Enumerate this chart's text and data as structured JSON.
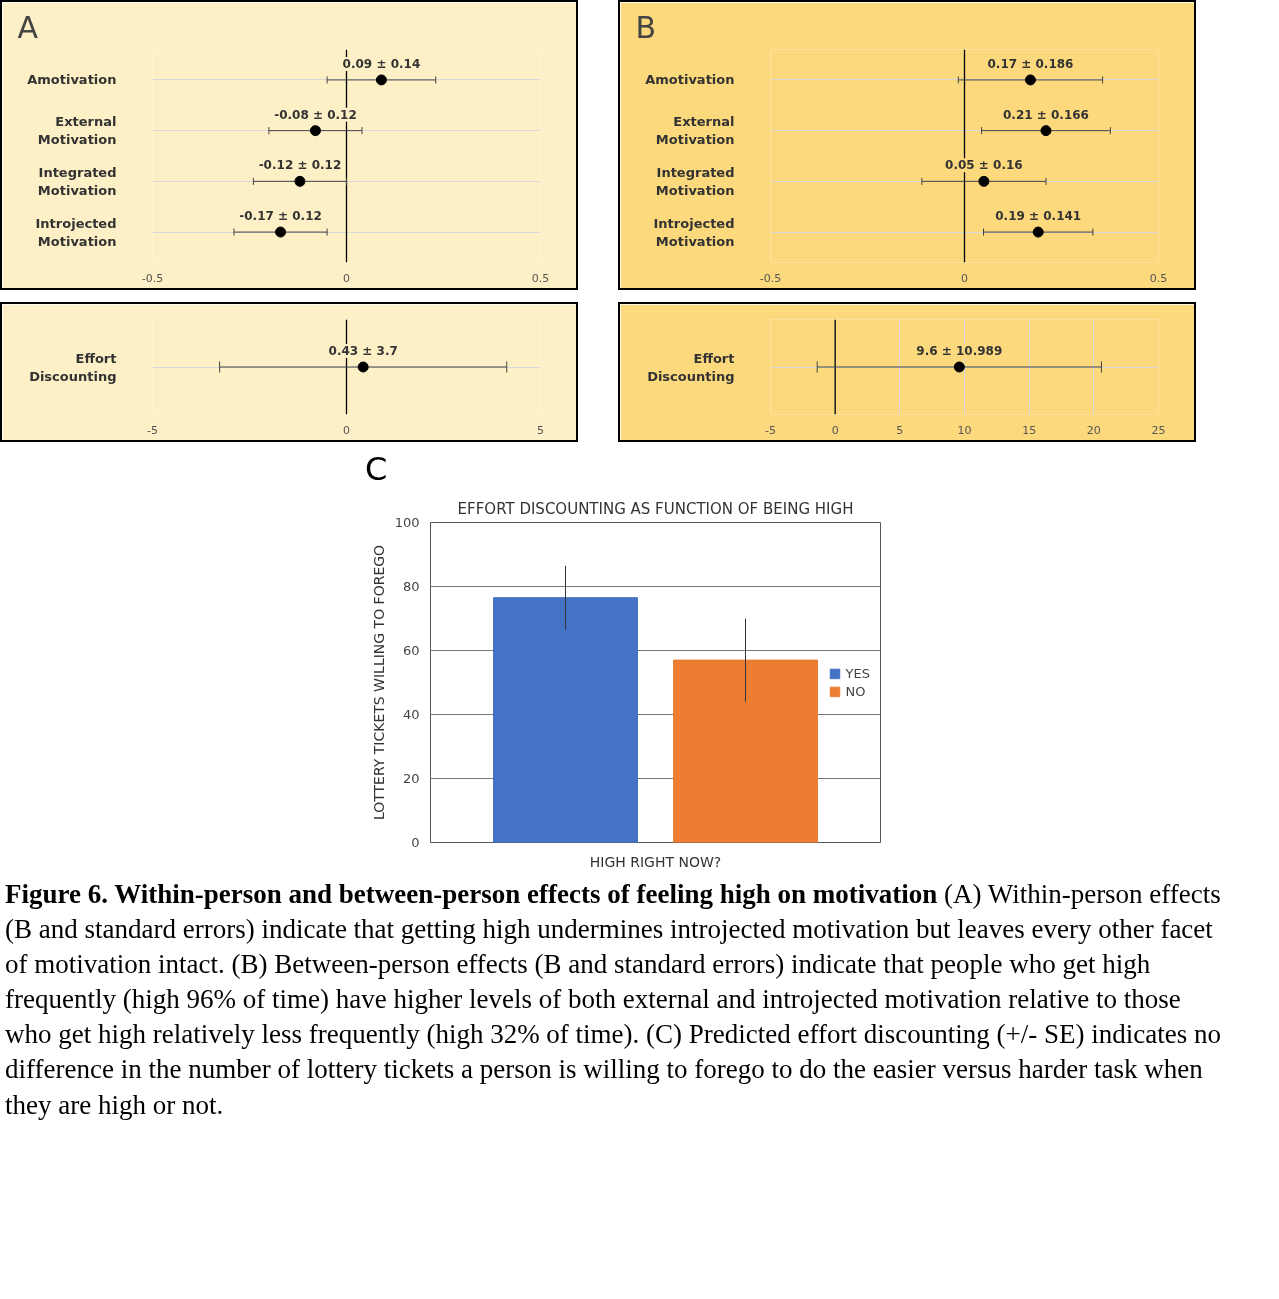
{
  "chart_data": [
    {
      "type": "scatter",
      "orientation": "horizontal",
      "title": "A",
      "categories": [
        "Amotivation",
        "External Motivation",
        "Integrated Motivation",
        "Introjected Motivation"
      ],
      "series": [
        {
          "color": "#000000",
          "values": [
            0.09,
            -0.08,
            -0.12,
            -0.17
          ],
          "errors": [
            0.14,
            0.12,
            0.12,
            0.12
          ],
          "value_labels": [
            "0.09 ± 0.14",
            "-0.08 ± 0.12",
            "-0.12 ± 0.12",
            "-0.17 ± 0.12"
          ]
        }
      ],
      "xlim": [
        -0.5,
        0.5
      ],
      "xticks": [
        -0.5,
        0,
        0.5
      ],
      "grid": true,
      "marker": "circle",
      "ref_lines": [
        {
          "axis": "x",
          "value": 0
        }
      ]
    },
    {
      "type": "scatter",
      "orientation": "horizontal",
      "title": "B",
      "categories": [
        "Amotivation",
        "External Motivation",
        "Integrated Motivation",
        "Introjected Motivation"
      ],
      "series": [
        {
          "color": "#000000",
          "values": [
            0.17,
            0.21,
            0.05,
            0.19
          ],
          "errors": [
            0.186,
            0.166,
            0.16,
            0.141
          ],
          "value_labels": [
            "0.17 ± 0.186",
            "0.21 ± 0.166",
            "0.05 ± 0.16",
            "0.19 ± 0.141"
          ]
        }
      ],
      "xlim": [
        -0.5,
        0.5
      ],
      "xticks": [
        -0.5,
        0,
        0.5
      ],
      "grid": true,
      "marker": "circle",
      "ref_lines": [
        {
          "axis": "x",
          "value": 0
        }
      ]
    },
    {
      "type": "scatter",
      "orientation": "horizontal",
      "categories": [
        "Effort Discounting"
      ],
      "series": [
        {
          "color": "#000000",
          "values": [
            0.43
          ],
          "errors": [
            3.7
          ],
          "value_labels": [
            "0.43 ± 3.7"
          ]
        }
      ],
      "xlim": [
        -5,
        5
      ],
      "xticks": [
        -5,
        0,
        5
      ],
      "grid": true,
      "marker": "circle",
      "ref_lines": [
        {
          "axis": "x",
          "value": 0
        }
      ]
    },
    {
      "type": "scatter",
      "orientation": "horizontal",
      "categories": [
        "Effort Discounting"
      ],
      "series": [
        {
          "color": "#000000",
          "values": [
            9.6
          ],
          "errors": [
            10.989
          ],
          "value_labels": [
            "9.6 ± 10.989"
          ]
        }
      ],
      "xlim": [
        -5,
        25
      ],
      "xticks": [
        -5,
        0,
        5,
        10,
        15,
        20,
        25
      ],
      "grid": true,
      "marker": "circle",
      "ref_lines": [
        {
          "axis": "x",
          "value": 0
        }
      ]
    },
    {
      "type": "bar",
      "title": "EFFORT DISCOUNTING AS FUNCTION OF BEING HIGH",
      "xlabel": "HIGH RIGHT NOW?",
      "ylabel": "LOTTERY TICKETS WILLING TO FOREGO",
      "categories": [
        null
      ],
      "series": [
        {
          "name": "YES",
          "color": "#4472c4",
          "values": [
            76.5
          ],
          "errors": [
            10
          ]
        },
        {
          "name": "NO",
          "color": "#ed7d31",
          "values": [
            57
          ],
          "errors": [
            13
          ]
        }
      ],
      "ylim": [
        0,
        100
      ],
      "yticks": [
        0,
        20,
        40,
        60,
        80,
        100
      ],
      "grid": "y",
      "legend": "right",
      "annotations": [
        "C",
        "Figure 6. Within-person and between-person effects of feeling high on motivation",
        "(A) Within-person effects (B and standard errors) indicate that getting high undermines introjected motivation but leaves every other facet of motivation intact. (B) Between-person effects (B and standard errors) indicate that people who get high frequently (high 96% of time) have higher levels of both external and introjected motivation relative to those who get high relatively less frequently (high 32% of time). (C) Predicted effort discounting (+/- SE) indicates no difference in the number of lottery tickets a person is willing to forego to do the easier versus harder task when they are high or not."
      ]
    }
  ]
}
